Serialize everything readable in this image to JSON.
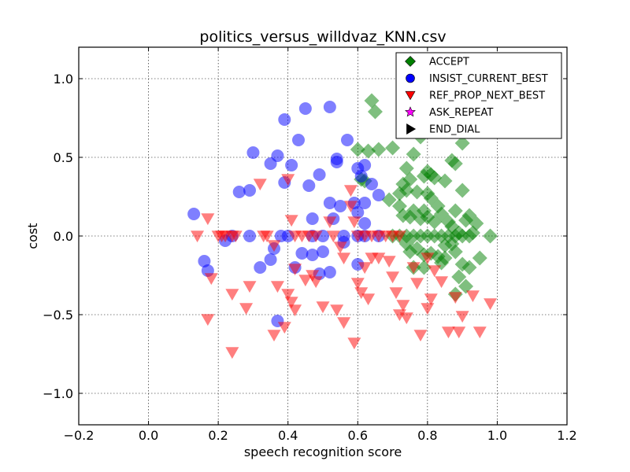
{
  "chart_data": {
    "type": "scatter",
    "title": "politics_versus_willdvaz_KNN.csv",
    "xlabel": "speech recognition score",
    "ylabel": "cost",
    "xlim": [
      -0.2,
      1.2
    ],
    "ylim": [
      -1.2,
      1.2
    ],
    "xticks": [
      -0.2,
      0.0,
      0.2,
      0.4,
      0.6,
      0.8,
      1.0,
      1.2
    ],
    "xtick_labels": [
      "−0.2",
      "0.0",
      "0.2",
      "0.4",
      "0.6",
      "0.8",
      "1.0",
      "1.2"
    ],
    "yticks": [
      -1.0,
      -0.5,
      0.0,
      0.5,
      1.0
    ],
    "ytick_labels": [
      "−1.0",
      "−0.5",
      "0.0",
      "0.5",
      "1.0"
    ],
    "grid": true,
    "legend_position": "top-right",
    "series": [
      {
        "name": "ACCEPT",
        "marker": "diamond",
        "color": "#008000",
        "points": [
          [
            0.64,
            0.86
          ],
          [
            0.65,
            0.79
          ],
          [
            0.6,
            0.55
          ],
          [
            0.63,
            0.54
          ],
          [
            0.66,
            0.55
          ],
          [
            0.7,
            0.56
          ],
          [
            0.73,
            0.68
          ],
          [
            0.77,
            0.68
          ],
          [
            0.76,
            0.52
          ],
          [
            0.78,
            0.63
          ],
          [
            0.74,
            0.43
          ],
          [
            0.73,
            0.33
          ],
          [
            0.75,
            0.36
          ],
          [
            0.72,
            0.27
          ],
          [
            0.74,
            0.29
          ],
          [
            0.77,
            0.28
          ],
          [
            0.79,
            0.38
          ],
          [
            0.8,
            0.41
          ],
          [
            0.81,
            0.39
          ],
          [
            0.82,
            0.37
          ],
          [
            0.8,
            0.27
          ],
          [
            0.81,
            0.24
          ],
          [
            0.83,
            0.19
          ],
          [
            0.85,
            0.35
          ],
          [
            0.87,
            0.48
          ],
          [
            0.88,
            0.46
          ],
          [
            0.9,
            0.59
          ],
          [
            0.9,
            0.29
          ],
          [
            0.92,
            0.13
          ],
          [
            0.94,
            0.08
          ],
          [
            0.61,
            0.36
          ],
          [
            0.62,
            0.35
          ],
          [
            0.69,
            0.23
          ],
          [
            0.72,
            0.19
          ],
          [
            0.73,
            0.13
          ],
          [
            0.75,
            0.12
          ],
          [
            0.76,
            0.16
          ],
          [
            0.78,
            0.11
          ],
          [
            0.79,
            0.16
          ],
          [
            0.8,
            0.12
          ],
          [
            0.82,
            0.09
          ],
          [
            0.84,
            0.14
          ],
          [
            0.86,
            0.09
          ],
          [
            0.87,
            0.06
          ],
          [
            0.88,
            0.16
          ],
          [
            0.89,
            0.02
          ],
          [
            0.91,
            0.1
          ],
          [
            0.93,
            0.02
          ],
          [
            0.7,
            0.0
          ],
          [
            0.72,
            0.0
          ],
          [
            0.74,
            0.0
          ],
          [
            0.76,
            0.0
          ],
          [
            0.78,
            0.0
          ],
          [
            0.8,
            0.0
          ],
          [
            0.82,
            0.0
          ],
          [
            0.84,
            0.0
          ],
          [
            0.86,
            0.0
          ],
          [
            0.88,
            0.0
          ],
          [
            0.9,
            0.0
          ],
          [
            0.92,
            0.0
          ],
          [
            0.98,
            0.0
          ],
          [
            0.74,
            -0.05
          ],
          [
            0.75,
            -0.1
          ],
          [
            0.77,
            -0.08
          ],
          [
            0.79,
            -0.12
          ],
          [
            0.81,
            -0.11
          ],
          [
            0.83,
            -0.13
          ],
          [
            0.85,
            -0.14
          ],
          [
            0.85,
            -0.06
          ],
          [
            0.87,
            -0.05
          ],
          [
            0.88,
            -0.1
          ],
          [
            0.9,
            -0.18
          ],
          [
            0.92,
            -0.2
          ],
          [
            0.95,
            -0.14
          ],
          [
            0.89,
            -0.26
          ],
          [
            0.88,
            -0.37
          ],
          [
            0.91,
            -0.32
          ],
          [
            0.76,
            -0.2
          ],
          [
            0.79,
            -0.2
          ],
          [
            0.84,
            -0.17
          ]
        ]
      },
      {
        "name": "INSIST_CURRENT_BEST",
        "marker": "circle",
        "color": "#0000ff",
        "points": [
          [
            0.13,
            0.14
          ],
          [
            0.16,
            -0.16
          ],
          [
            0.17,
            -0.22
          ],
          [
            0.22,
            -0.03
          ],
          [
            0.26,
            0.28
          ],
          [
            0.29,
            0.29
          ],
          [
            0.3,
            0.53
          ],
          [
            0.35,
            0.46
          ],
          [
            0.37,
            0.51
          ],
          [
            0.39,
            0.74
          ],
          [
            0.39,
            0.34
          ],
          [
            0.41,
            0.45
          ],
          [
            0.43,
            0.61
          ],
          [
            0.45,
            0.81
          ],
          [
            0.46,
            0.32
          ],
          [
            0.49,
            0.39
          ],
          [
            0.52,
            0.82
          ],
          [
            0.54,
            0.49
          ],
          [
            0.54,
            0.47
          ],
          [
            0.57,
            0.61
          ],
          [
            0.6,
            0.43
          ],
          [
            0.61,
            0.38
          ],
          [
            0.62,
            0.45
          ],
          [
            0.62,
            0.21
          ],
          [
            0.64,
            0.33
          ],
          [
            0.66,
            0.26
          ],
          [
            0.55,
            0.19
          ],
          [
            0.52,
            0.21
          ],
          [
            0.53,
            0.11
          ],
          [
            0.47,
            0.11
          ],
          [
            0.59,
            0.21
          ],
          [
            0.6,
            0.15
          ],
          [
            0.62,
            0.08
          ],
          [
            0.38,
            0.0
          ],
          [
            0.4,
            0.0
          ],
          [
            0.47,
            0.0
          ],
          [
            0.5,
            0.0
          ],
          [
            0.56,
            0.0
          ],
          [
            0.6,
            0.0
          ],
          [
            0.62,
            0.0
          ],
          [
            0.66,
            0.0
          ],
          [
            0.29,
            0.0
          ],
          [
            0.36,
            -0.08
          ],
          [
            0.35,
            -0.15
          ],
          [
            0.32,
            -0.2
          ],
          [
            0.37,
            -0.54
          ],
          [
            0.42,
            -0.2
          ],
          [
            0.44,
            -0.11
          ],
          [
            0.47,
            -0.12
          ],
          [
            0.49,
            -0.24
          ],
          [
            0.5,
            -0.1
          ],
          [
            0.52,
            -0.23
          ],
          [
            0.56,
            -0.04
          ],
          [
            0.6,
            -0.18
          ],
          [
            0.24,
            0.0
          ]
        ]
      },
      {
        "name": "REF_PROP_NEXT_BEST",
        "marker": "triangle-down",
        "color": "#ff0000",
        "points": [
          [
            0.14,
            0.0
          ],
          [
            0.17,
            0.11
          ],
          [
            0.18,
            -0.27
          ],
          [
            0.17,
            -0.53
          ],
          [
            0.2,
            0.0
          ],
          [
            0.22,
            0.0
          ],
          [
            0.24,
            0.0
          ],
          [
            0.25,
            0.0
          ],
          [
            0.21,
            0.0
          ],
          [
            0.24,
            -0.37
          ],
          [
            0.24,
            -0.74
          ],
          [
            0.28,
            -0.46
          ],
          [
            0.29,
            -0.32
          ],
          [
            0.32,
            0.33
          ],
          [
            0.33,
            0.0
          ],
          [
            0.34,
            0.0
          ],
          [
            0.36,
            -0.06
          ],
          [
            0.37,
            -0.32
          ],
          [
            0.36,
            -0.63
          ],
          [
            0.39,
            -0.58
          ],
          [
            0.4,
            0.36
          ],
          [
            0.41,
            0.1
          ],
          [
            0.42,
            0.0
          ],
          [
            0.44,
            0.0
          ],
          [
            0.46,
            0.0
          ],
          [
            0.48,
            0.0
          ],
          [
            0.4,
            -0.37
          ],
          [
            0.41,
            -0.42
          ],
          [
            0.42,
            -0.47
          ],
          [
            0.42,
            -0.21
          ],
          [
            0.45,
            -0.28
          ],
          [
            0.47,
            -0.25
          ],
          [
            0.48,
            -0.29
          ],
          [
            0.5,
            -0.45
          ],
          [
            0.52,
            0.09
          ],
          [
            0.53,
            0.0
          ],
          [
            0.55,
            -0.07
          ],
          [
            0.56,
            -0.14
          ],
          [
            0.54,
            -0.47
          ],
          [
            0.56,
            -0.55
          ],
          [
            0.58,
            0.29
          ],
          [
            0.58,
            0.19
          ],
          [
            0.59,
            0.09
          ],
          [
            0.6,
            0.0
          ],
          [
            0.62,
            0.0
          ],
          [
            0.64,
            0.0
          ],
          [
            0.66,
            0.0
          ],
          [
            0.68,
            0.0
          ],
          [
            0.7,
            0.0
          ],
          [
            0.72,
            0.0
          ],
          [
            0.6,
            -0.3
          ],
          [
            0.61,
            -0.36
          ],
          [
            0.63,
            -0.4
          ],
          [
            0.59,
            -0.68
          ],
          [
            0.62,
            -0.2
          ],
          [
            0.64,
            -0.14
          ],
          [
            0.66,
            -0.14
          ],
          [
            0.69,
            -0.16
          ],
          [
            0.7,
            -0.26
          ],
          [
            0.71,
            -0.36
          ],
          [
            0.73,
            -0.44
          ],
          [
            0.74,
            -0.52
          ],
          [
            0.76,
            -0.2
          ],
          [
            0.77,
            -0.3
          ],
          [
            0.78,
            -0.63
          ],
          [
            0.8,
            -0.46
          ],
          [
            0.8,
            -0.14
          ],
          [
            0.82,
            -0.22
          ],
          [
            0.84,
            -0.29
          ],
          [
            0.86,
            -0.61
          ],
          [
            0.88,
            -0.39
          ],
          [
            0.89,
            -0.61
          ],
          [
            0.9,
            -0.51
          ],
          [
            0.93,
            -0.38
          ],
          [
            0.95,
            -0.61
          ],
          [
            0.98,
            -0.43
          ],
          [
            0.72,
            -0.5
          ],
          [
            0.81,
            -0.4
          ]
        ]
      },
      {
        "name": "ASK_REPEAT",
        "marker": "star",
        "color": "#ff00ff",
        "points": []
      },
      {
        "name": "END_DIAL",
        "marker": "triangle-right",
        "color": "#000000",
        "points": []
      }
    ]
  }
}
